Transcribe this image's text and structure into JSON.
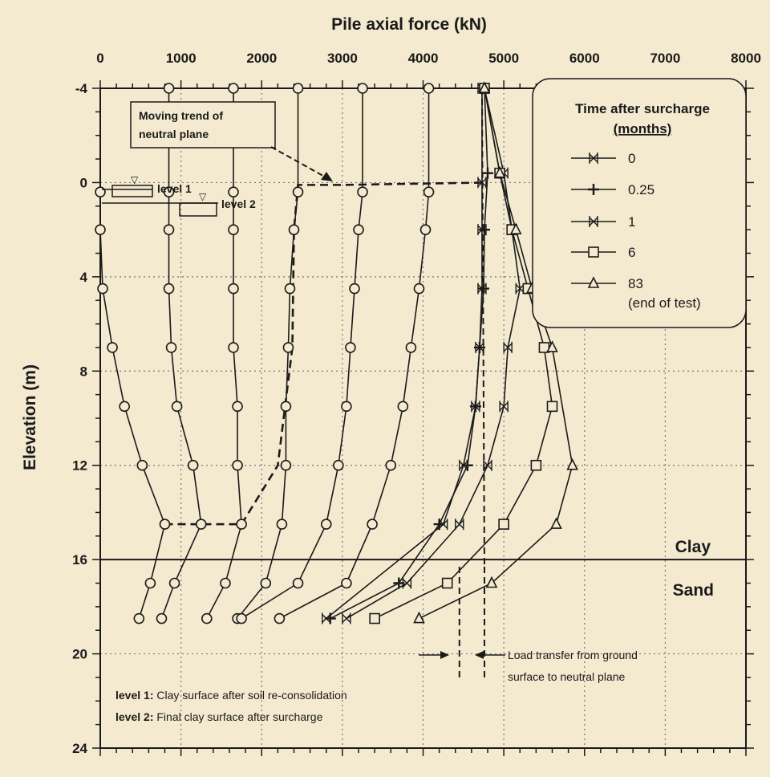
{
  "chart_data": {
    "type": "line",
    "title": "Pile axial force (kN)",
    "xlabel": "Pile axial force (kN)",
    "ylabel": "Elevation (m)",
    "xlim": [
      0,
      8000
    ],
    "ylim": [
      -4,
      24
    ],
    "y_inverted": true,
    "x_ticks": [
      0,
      1000,
      2000,
      3000,
      4000,
      5000,
      6000,
      7000,
      8000
    ],
    "y_ticks": [
      -4,
      0,
      4,
      8,
      12,
      16,
      20,
      24
    ],
    "y_tick_labels": [
      "-4",
      "0",
      "4",
      "8",
      "12",
      "16",
      "20",
      "24"
    ],
    "grid": true,
    "legend_position": "top-right",
    "legend_title": "Time after surcharge",
    "legend_subtitle": "(months)",
    "series": [
      {
        "name": "0",
        "marker": "x-line",
        "x": [
          4730,
          4730,
          4730,
          4730,
          4700,
          4650,
          4500,
          4250,
          2800
        ],
        "y": [
          -4,
          0,
          2,
          4.5,
          7,
          9.5,
          12,
          14.5,
          18.5
        ]
      },
      {
        "name": "0.25",
        "marker": "plus",
        "x": [
          4760,
          4800,
          4760,
          4750,
          4700,
          4650,
          4550,
          4200,
          3700,
          2850
        ],
        "y": [
          -4,
          -0.4,
          2,
          4.5,
          7,
          9.5,
          12,
          14.5,
          17,
          18.5
        ]
      },
      {
        "name": "1",
        "marker": "x-line",
        "x": [
          4760,
          5000,
          5100,
          5200,
          5050,
          5000,
          4800,
          4450,
          3800,
          3050
        ],
        "y": [
          -4,
          -0.4,
          2,
          4.5,
          7,
          9.5,
          12,
          14.5,
          17,
          18.5
        ]
      },
      {
        "name": "6",
        "marker": "square",
        "x": [
          4760,
          4950,
          5100,
          5300,
          5500,
          5600,
          5400,
          5000,
          4300,
          3400
        ],
        "y": [
          -4,
          -0.4,
          2,
          4.5,
          7,
          9.5,
          12,
          14.5,
          17,
          18.5
        ]
      },
      {
        "name": "83\n(end of test)",
        "marker": "triangle",
        "x": [
          4760,
          4950,
          5150,
          5350,
          5600,
          5850,
          5650,
          4850,
          3950
        ],
        "y": [
          -4,
          -0.4,
          2,
          4.5,
          7,
          12,
          14.5,
          17,
          18.5
        ]
      }
    ],
    "other_curves": [
      {
        "marker": "circle",
        "x": [
          0,
          0,
          30,
          150,
          300,
          520,
          800,
          620,
          480
        ],
        "y": [
          0.4,
          2,
          4.5,
          7,
          9.5,
          12,
          14.5,
          17,
          18.5
        ]
      },
      {
        "marker": "circle",
        "x": [
          850,
          850,
          850,
          850,
          880,
          950,
          1150,
          1250,
          920,
          760
        ],
        "y": [
          -4,
          0.4,
          2,
          4.5,
          7,
          9.5,
          12,
          14.5,
          17,
          18.5
        ]
      },
      {
        "marker": "circle",
        "x": [
          1650,
          1650,
          1650,
          1650,
          1650,
          1700,
          1700,
          1750,
          1550,
          1320
        ],
        "y": [
          -4,
          0.4,
          2,
          4.5,
          7,
          9.5,
          12,
          14.5,
          17,
          18.5
        ]
      },
      {
        "marker": "circle",
        "x": [
          2450,
          2450,
          2400,
          2350,
          2330,
          2300,
          2300,
          2250,
          2050,
          1700
        ],
        "y": [
          -4,
          0.4,
          2,
          4.5,
          7,
          9.5,
          12,
          14.5,
          17,
          18.5
        ]
      },
      {
        "marker": "circle",
        "x": [
          3250,
          3250,
          3200,
          3150,
          3100,
          3050,
          2950,
          2800,
          2450,
          1750
        ],
        "y": [
          -4,
          0.4,
          2,
          4.5,
          7,
          9.5,
          12,
          14.5,
          17,
          18.5
        ]
      },
      {
        "marker": "circle",
        "x": [
          4070,
          4070,
          4030,
          3950,
          3850,
          3750,
          3600,
          3370,
          3050,
          2220
        ],
        "y": [
          -4,
          0.4,
          2,
          4.5,
          7,
          9.5,
          12,
          14.5,
          17,
          18.5
        ]
      }
    ],
    "neutral_plane_trend": {
      "x": [
        800,
        1750,
        2200,
        2380,
        2400,
        2450,
        3000,
        4760
      ],
      "y": [
        14.5,
        14.5,
        12,
        7,
        2,
        0.1,
        0.1,
        0
      ]
    },
    "load_transfer_lines": {
      "x": [
        4450,
        4760
      ],
      "y_range": [
        16.3,
        21
      ]
    },
    "soil_boundary_elevation": 16,
    "layer_labels": {
      "upper": "Clay",
      "lower": "Sand"
    },
    "annotations": {
      "moving_trend_line1": "Moving trend of",
      "moving_trend_line2": "neutral plane",
      "level1": "level 1",
      "level2": "level 2",
      "load_transfer_line1": "Load transfer from ground",
      "load_transfer_line2": "surface to neutral plane",
      "note1_key": "level 1:",
      "note1_text": "Clay surface after soil re-consolidation",
      "note2_key": "level 2:",
      "note2_text": "Final clay surface after surcharge"
    }
  }
}
